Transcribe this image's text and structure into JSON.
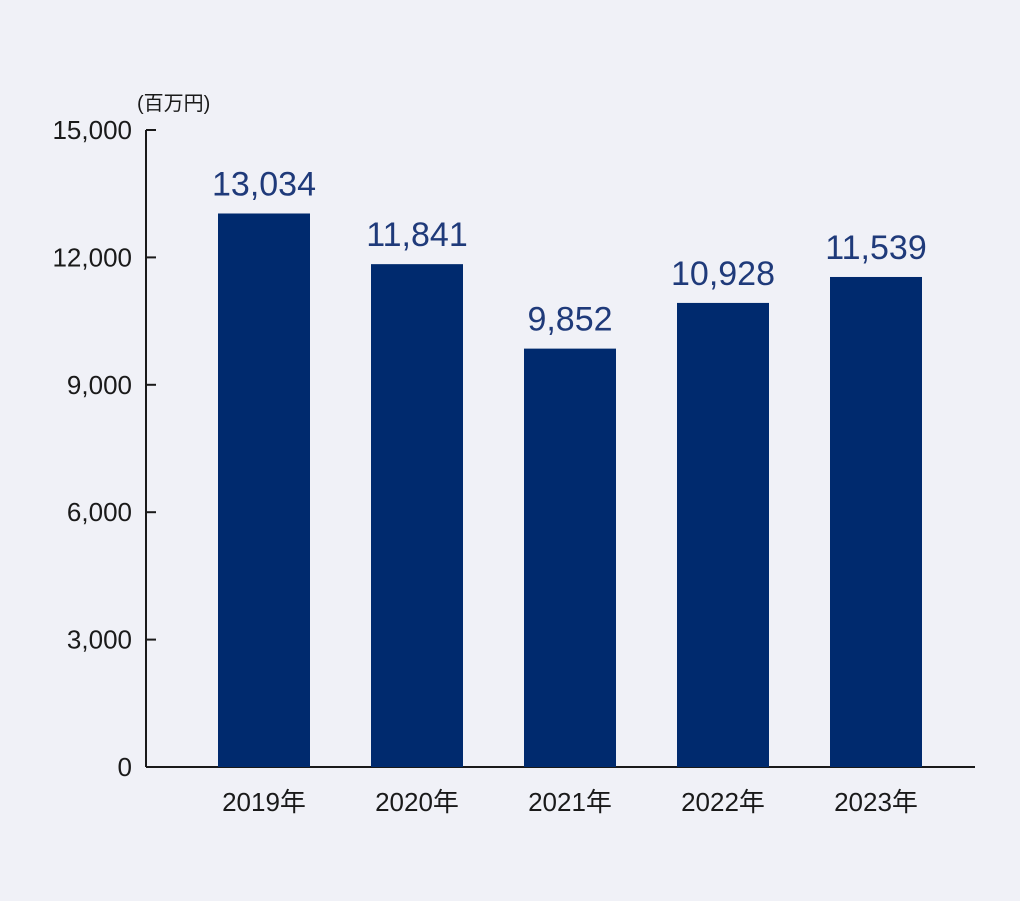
{
  "chart_data": {
    "type": "bar",
    "unit": "(百万円)",
    "categories": [
      "2019年",
      "2020年",
      "2021年",
      "2022年",
      "2023年"
    ],
    "values": [
      13034,
      11841,
      9852,
      10928,
      11539
    ],
    "value_labels": [
      "13,034",
      "11,841",
      "9,852",
      "10,928",
      "11,539"
    ],
    "yticks": [
      0,
      3000,
      6000,
      9000,
      12000,
      15000
    ],
    "ytick_labels": [
      "0",
      "3,000",
      "6,000",
      "9,000",
      "12,000",
      "15,000"
    ],
    "ylim": [
      0,
      15000
    ],
    "grid": false,
    "colors": {
      "bar": "#002a6e",
      "value_text": "#1f3a7a",
      "axis": "#1a1a1a",
      "background": "#f0f1f7"
    }
  }
}
